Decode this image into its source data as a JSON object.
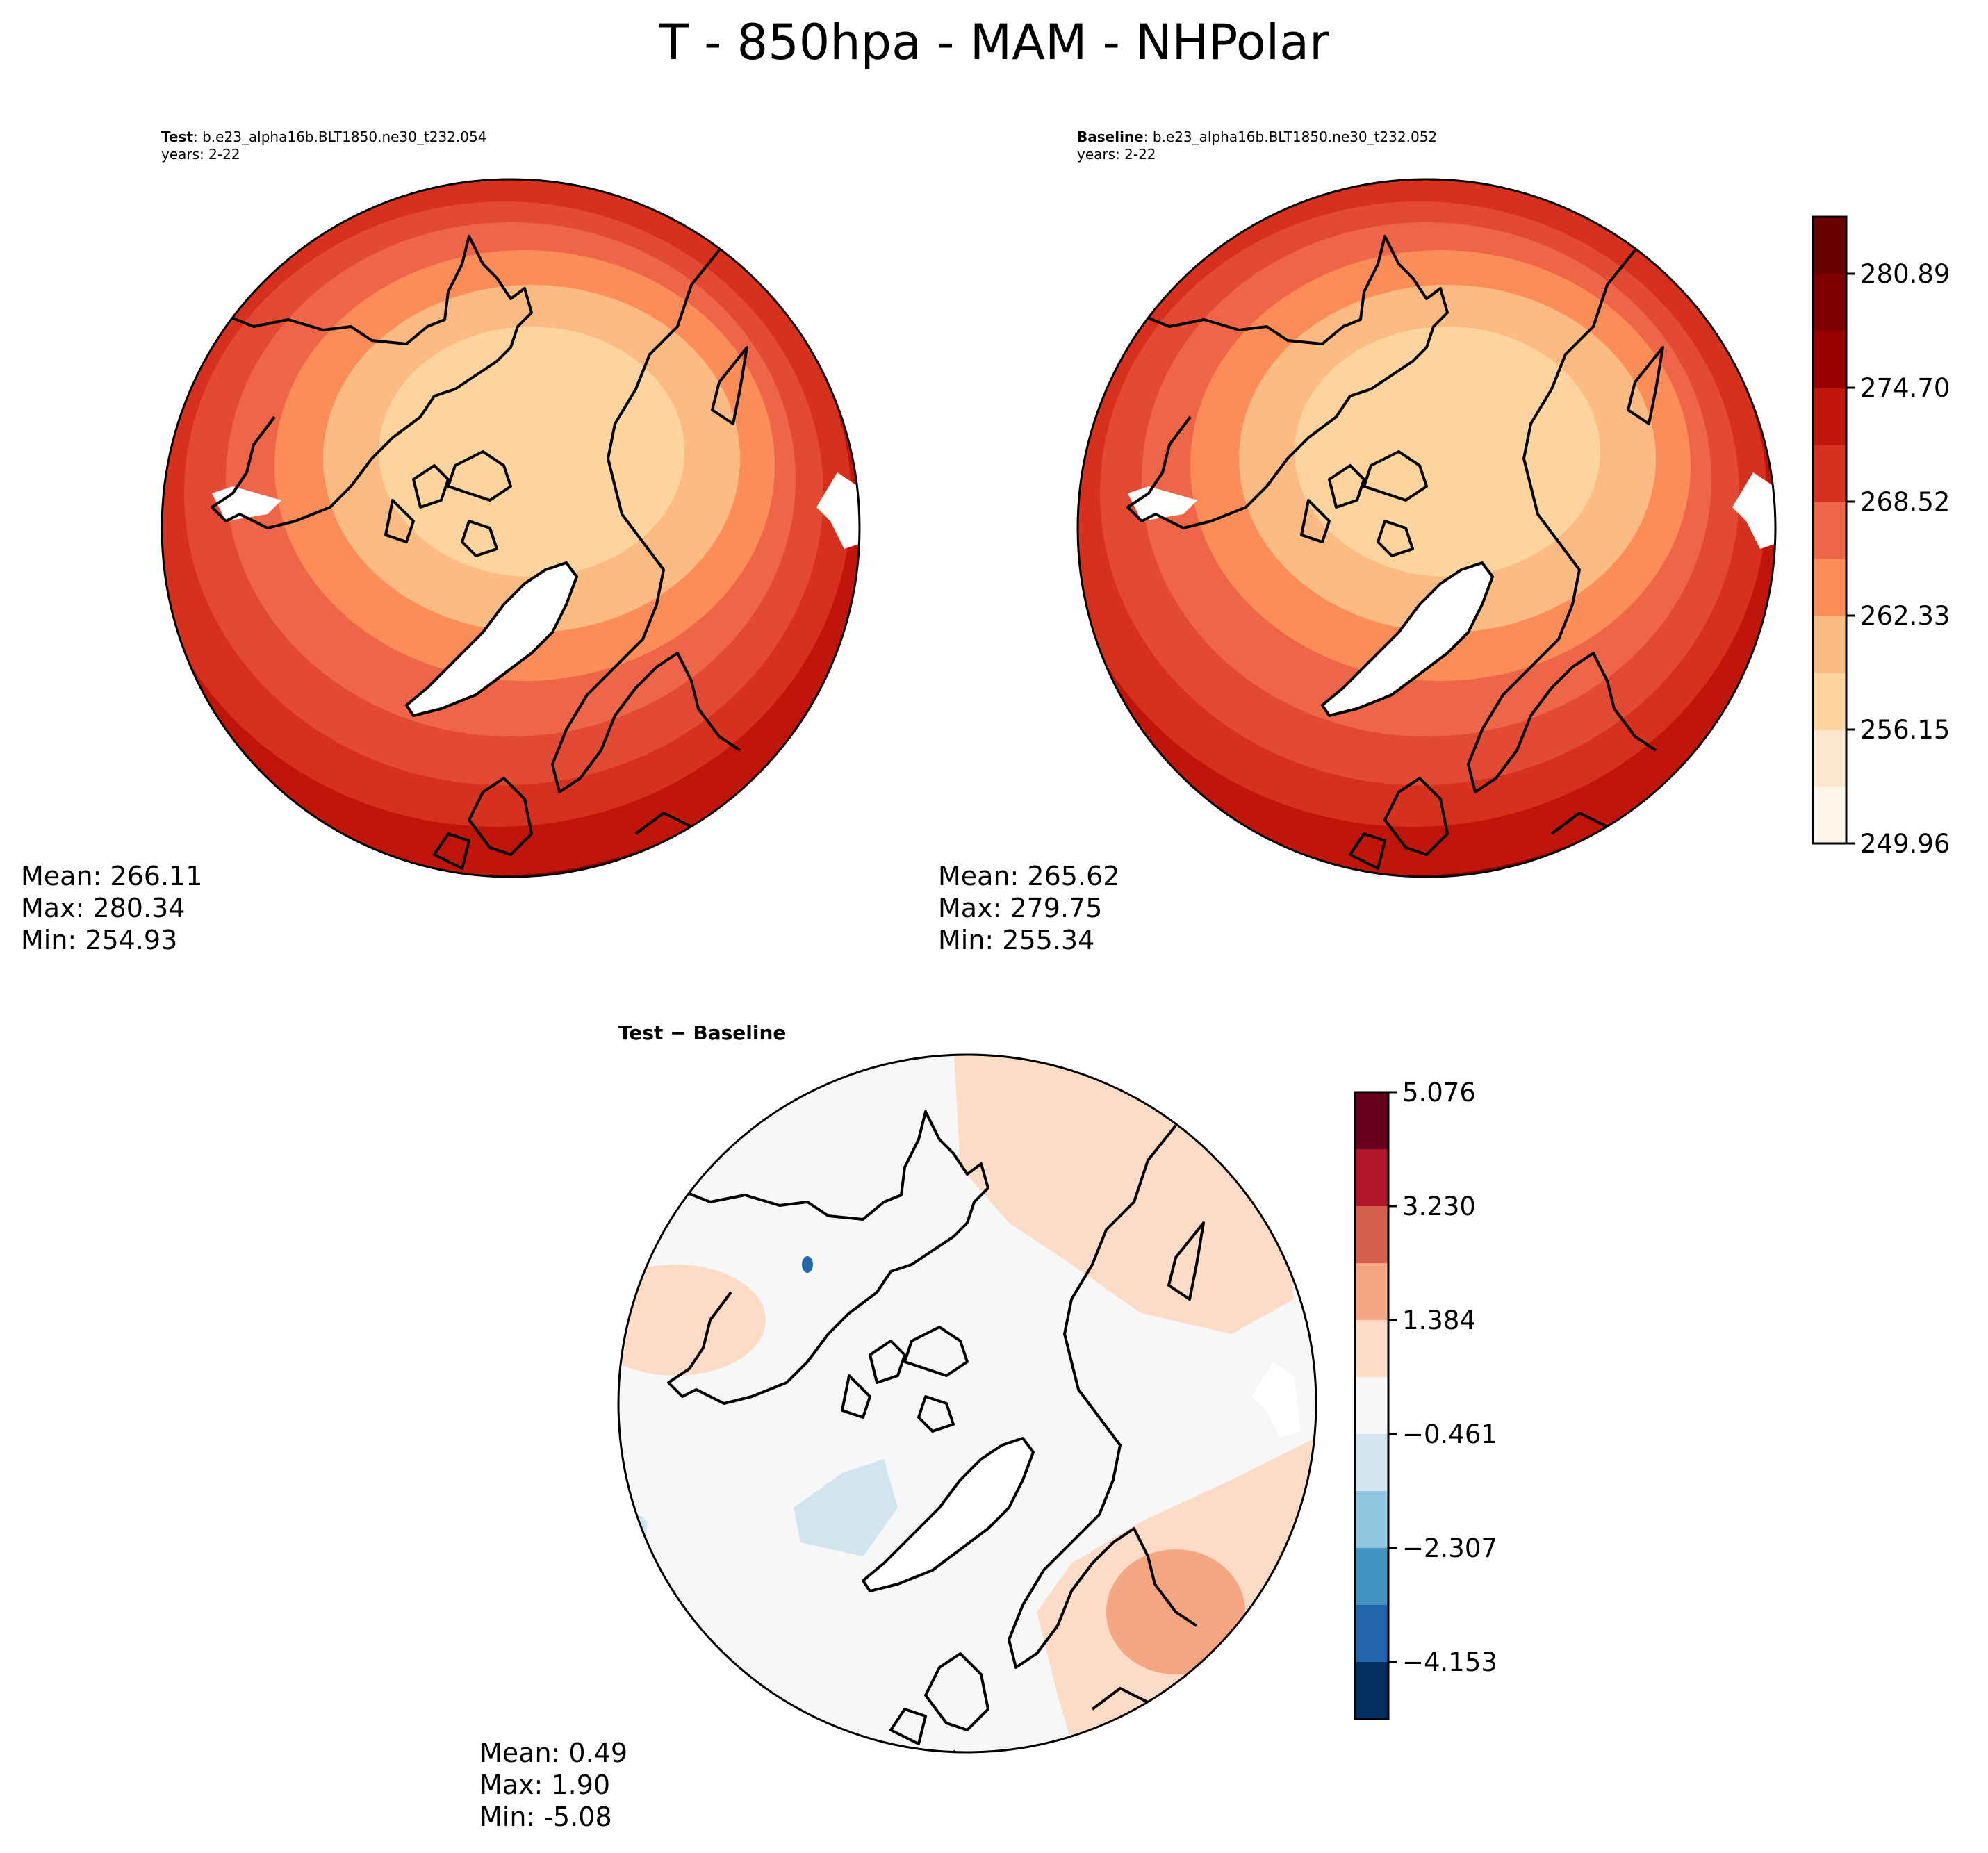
{
  "figure": {
    "title": "T - 850hpa - MAM - NHPolar"
  },
  "panels": [
    {
      "id": "test",
      "label_bold": "Test",
      "label_rest": ": b.e23_alpha16b.BLT1850.ne30_t232.054",
      "years": "years: 2-22",
      "mean": "Mean: 266.11",
      "max": "Max: 280.34",
      "min": "Min: 254.93"
    },
    {
      "id": "baseline",
      "label_bold": "Baseline",
      "label_rest": ": b.e23_alpha16b.BLT1850.ne30_t232.052",
      "years": "years: 2-22",
      "mean": "Mean: 265.62",
      "max": "Max: 279.75",
      "min": "Min: 255.34"
    },
    {
      "id": "difference",
      "title": "Test − Baseline",
      "mean": "Mean:  0.49",
      "max": "Max:  1.90",
      "min": "Min: -5.08"
    }
  ],
  "colorbars": {
    "absolute": {
      "ticks": [
        "249.96",
        "256.15",
        "262.33",
        "268.52",
        "274.70",
        "280.89"
      ],
      "colors": [
        "#fff5eb",
        "#fee6ce",
        "#fdd49e",
        "#fdbb84",
        "#fc8d59",
        "#ef6548",
        "#d7301f",
        "#c0150a",
        "#990000",
        "#7f0000",
        "#6b0000"
      ],
      "colormap": "OrRd-like"
    },
    "difference": {
      "ticks": [
        "5.076",
        "3.230",
        "1.384",
        "−0.461",
        "−2.307",
        "−4.153"
      ],
      "colors": [
        "#67001f",
        "#b2182b",
        "#d6604d",
        "#f4a582",
        "#fddbc7",
        "#f7f7f7",
        "#d1e5f0",
        "#92c5de",
        "#4393c3",
        "#2166ac",
        "#053061"
      ],
      "colormap": "RdBu_r"
    }
  }
}
